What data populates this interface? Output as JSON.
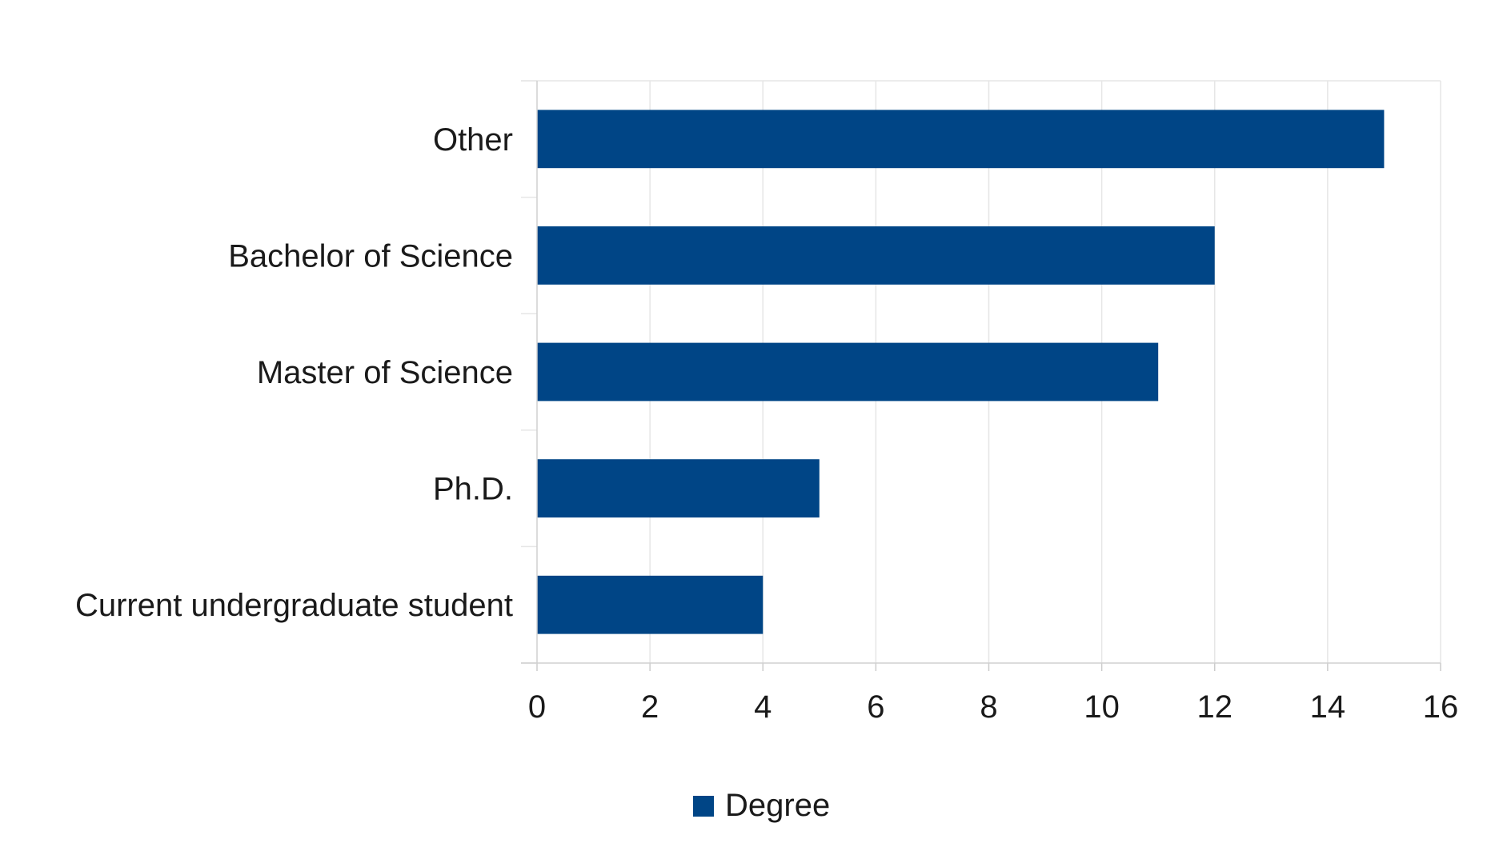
{
  "chart_data": {
    "type": "bar",
    "orientation": "horizontal",
    "categories": [
      "Current undergraduate student",
      "Ph.D.",
      "Master of Science",
      "Bachelor of Science",
      "Other"
    ],
    "series": [
      {
        "name": "Degree",
        "values": [
          4,
          5,
          11,
          12,
          15
        ],
        "color": "#004586"
      }
    ],
    "xlim": [
      0,
      16
    ],
    "x_ticks": [
      "0",
      "2",
      "4",
      "6",
      "8",
      "10",
      "12",
      "14",
      "16"
    ],
    "grid": true,
    "legend": "bottom",
    "title": "",
    "xlabel": "",
    "ylabel": ""
  }
}
